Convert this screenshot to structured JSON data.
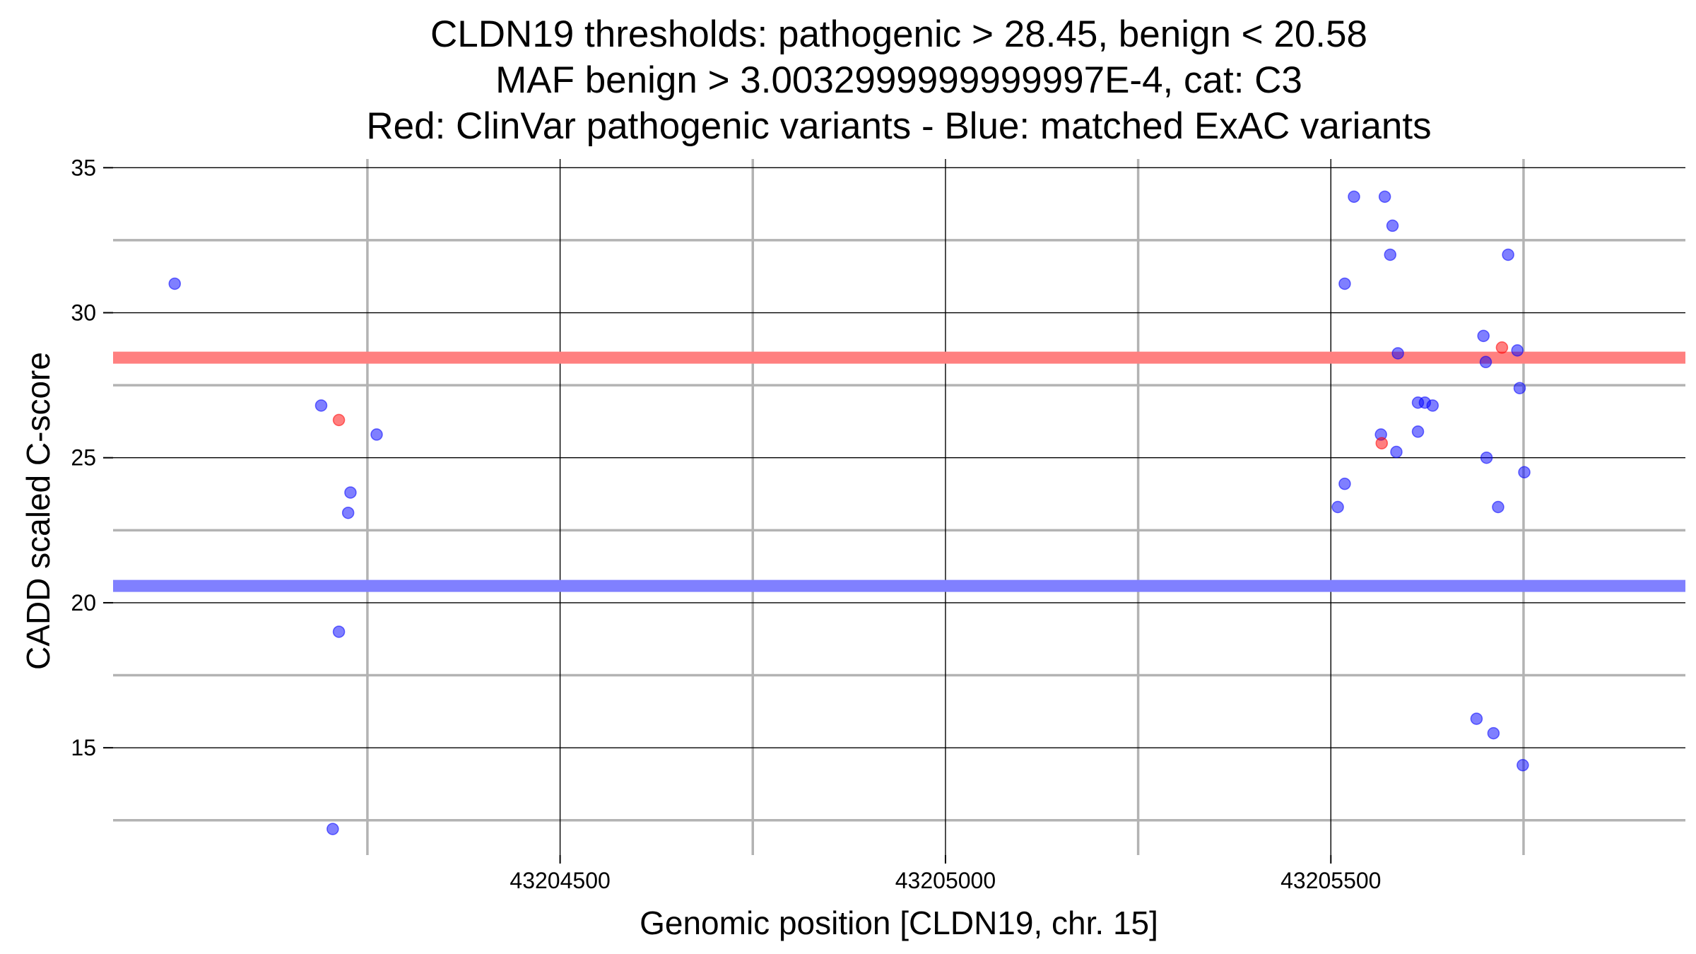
{
  "chart_data": {
    "type": "scatter",
    "title": [
      "CLDN19 thresholds: pathogenic > 28.45, benign < 20.58",
      "MAF benign > 3.0032999999999997E-4, cat: C3",
      "Red: ClinVar pathogenic variants - Blue: matched ExAC variants"
    ],
    "xlabel": "Genomic position [CLDN19, chr. 15]",
    "ylabel": "CADD scaled C-score",
    "xlim": [
      43203920,
      43205960
    ],
    "ylim": [
      11.3,
      35.3
    ],
    "x_major_ticks": [
      43204500,
      43205000,
      43205500
    ],
    "x_tick_labels": [
      "43204500",
      "43205000",
      "43205500"
    ],
    "x_minor_ticks": [
      43204250,
      43204750,
      43205250,
      43205750
    ],
    "y_major_ticks": [
      15,
      20,
      25,
      30,
      35
    ],
    "y_tick_labels": [
      "15",
      "20",
      "25",
      "30",
      "35"
    ],
    "y_minor_ticks": [
      12.5,
      17.5,
      22.5,
      27.5,
      32.5
    ],
    "grid": true,
    "thresholds": [
      {
        "value": 28.45,
        "color": "#ff8080"
      },
      {
        "value": 20.58,
        "color": "#8080ff"
      }
    ],
    "series": [
      {
        "color": "#0000ff",
        "points": [
          {
            "x": 43204000,
            "y": 31.0
          },
          {
            "x": 43204190,
            "y": 26.8
          },
          {
            "x": 43204262,
            "y": 25.8
          },
          {
            "x": 43204228,
            "y": 23.8
          },
          {
            "x": 43204225,
            "y": 23.1
          },
          {
            "x": 43204213,
            "y": 19.0
          },
          {
            "x": 43204205,
            "y": 12.2
          },
          {
            "x": 43205530,
            "y": 34.0
          },
          {
            "x": 43205570,
            "y": 34.0
          },
          {
            "x": 43205580,
            "y": 33.0
          },
          {
            "x": 43205577,
            "y": 32.0
          },
          {
            "x": 43205518,
            "y": 31.0
          },
          {
            "x": 43205730,
            "y": 32.0
          },
          {
            "x": 43205698,
            "y": 29.2
          },
          {
            "x": 43205742,
            "y": 28.7
          },
          {
            "x": 43205587,
            "y": 28.6
          },
          {
            "x": 43205701,
            "y": 28.3
          },
          {
            "x": 43205745,
            "y": 27.4
          },
          {
            "x": 43205613,
            "y": 26.9
          },
          {
            "x": 43205622,
            "y": 26.9
          },
          {
            "x": 43205632,
            "y": 26.8
          },
          {
            "x": 43205613,
            "y": 25.9
          },
          {
            "x": 43205565,
            "y": 25.8
          },
          {
            "x": 43205585,
            "y": 25.2
          },
          {
            "x": 43205702,
            "y": 25.0
          },
          {
            "x": 43205751,
            "y": 24.5
          },
          {
            "x": 43205518,
            "y": 24.1
          },
          {
            "x": 43205509,
            "y": 23.3
          },
          {
            "x": 43205717,
            "y": 23.3
          },
          {
            "x": 43205689,
            "y": 16.0
          },
          {
            "x": 43205711,
            "y": 15.5
          },
          {
            "x": 43205749,
            "y": 14.4
          }
        ]
      },
      {
        "color": "#ff0000",
        "points": [
          {
            "x": 43204213,
            "y": 26.3
          },
          {
            "x": 43205722,
            "y": 28.8
          },
          {
            "x": 43205566,
            "y": 25.5
          }
        ]
      }
    ]
  }
}
